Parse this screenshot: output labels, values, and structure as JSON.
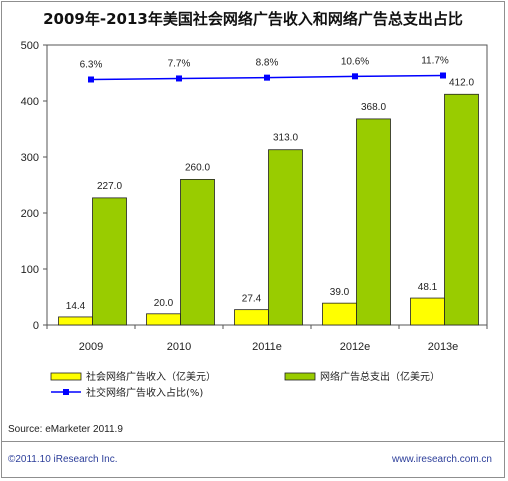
{
  "chart_data": {
    "type": "bar",
    "title": "2009年-2013年美国社会网络广告收入和网络广告总支出占比",
    "categories": [
      "2009",
      "2010",
      "2011e",
      "2012e",
      "2013e"
    ],
    "y_ticks": [
      "0",
      "100",
      "200",
      "300",
      "400",
      "500"
    ],
    "ylim": [
      0,
      500
    ],
    "grid": false,
    "legend_position": "bottom",
    "series": [
      {
        "name": "社会网络广告收入（亿美元）",
        "kind": "bar",
        "color": "#ffff00",
        "values": [
          14.4,
          20.0,
          27.4,
          39.0,
          48.1
        ],
        "labels": [
          "14.4",
          "20.0",
          "27.4",
          "39.0",
          "48.1"
        ]
      },
      {
        "name": "网络广告总支出（亿美元）",
        "kind": "bar",
        "color": "#99cc00",
        "values": [
          227.0,
          260.0,
          313.0,
          368.0,
          412.0
        ],
        "labels": [
          "227.0",
          "260.0",
          "313.0",
          "368.0",
          "412.0"
        ]
      },
      {
        "name": "社交网络广告收入占比(%)",
        "kind": "line",
        "color": "#0000ff",
        "values": [
          6.3,
          7.7,
          8.8,
          10.6,
          11.7
        ],
        "labels": [
          "6.3%",
          "7.7%",
          "8.8%",
          "10.6%",
          "11.7%"
        ]
      }
    ]
  },
  "footer": {
    "source": "Source: eMarketer 2011.9",
    "copyright": "©2011.10 iResearch Inc.",
    "website": "www.iresearch.com.cn"
  }
}
